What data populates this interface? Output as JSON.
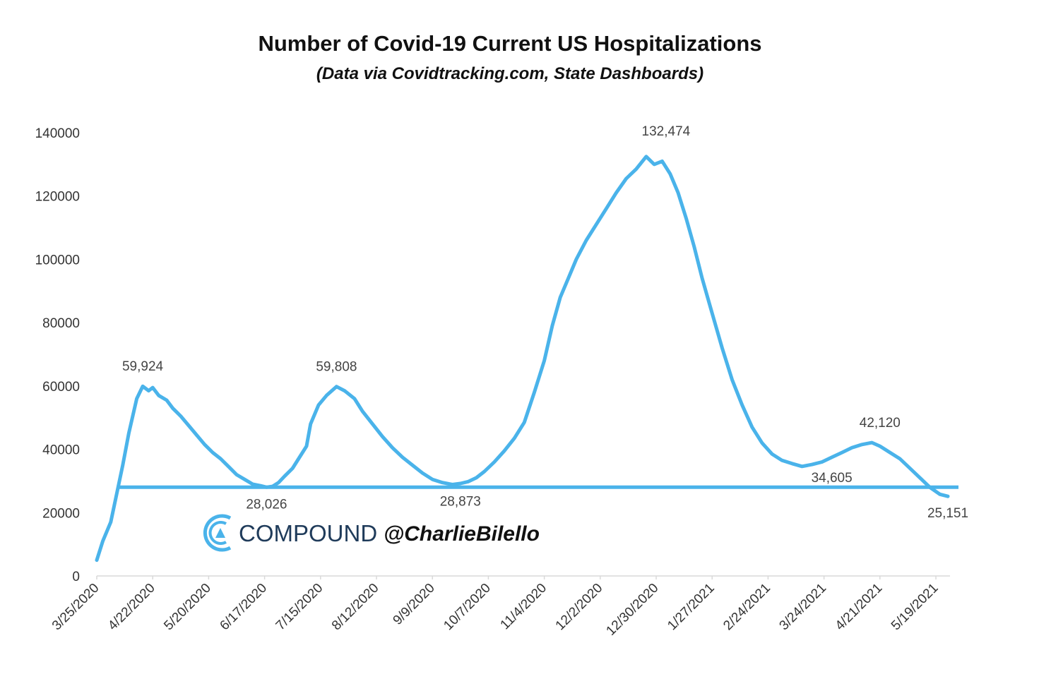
{
  "chart_data": {
    "type": "line",
    "title": "Number of Covid-19 Current US Hospitalizations",
    "subtitle": "(Data via Covidtracking.com, State Dashboards)",
    "xlabel": "",
    "ylabel": "",
    "ylim": [
      0,
      140000
    ],
    "yticks": [
      "0",
      "20000",
      "40000",
      "60000",
      "80000",
      "100000",
      "120000",
      "140000"
    ],
    "xticks": [
      "3/25/2020",
      "4/22/2020",
      "5/20/2020",
      "6/17/2020",
      "7/15/2020",
      "8/12/2020",
      "9/9/2020",
      "10/7/2020",
      "11/4/2020",
      "12/2/2020",
      "12/30/2020",
      "1/27/2021",
      "2/24/2021",
      "3/24/2021",
      "4/21/2021",
      "5/19/2021"
    ],
    "x_start": "3/25/2020",
    "x_end": "5/25/2021",
    "grid": false,
    "legend": "none",
    "series": [
      {
        "color": "#4ab3ea",
        "x": [
          "3/25/2020",
          "3/28/2020",
          "4/1/2020",
          "4/4/2020",
          "4/7/2020",
          "4/10/2020",
          "4/14/2020",
          "4/17/2020",
          "4/20/2020",
          "4/22/2020",
          "4/25/2020",
          "4/29/2020",
          "5/2/2020",
          "5/6/2020",
          "5/10/2020",
          "5/14/2020",
          "5/18/2020",
          "5/22/2020",
          "5/26/2020",
          "5/30/2020",
          "6/3/2020",
          "6/7/2020",
          "6/11/2020",
          "6/15/2020",
          "6/18/2020",
          "6/21/2020",
          "6/24/2020",
          "6/27/2020",
          "7/1/2020",
          "7/4/2020",
          "7/8/2020",
          "7/10/2020",
          "7/14/2020",
          "7/18/2020",
          "7/23/2020",
          "7/27/2020",
          "8/1/2020",
          "8/5/2020",
          "8/10/2020",
          "8/15/2020",
          "8/20/2020",
          "8/25/2020",
          "8/30/2020",
          "9/4/2020",
          "9/9/2020",
          "9/14/2020",
          "9/19/2020",
          "9/23/2020",
          "9/27/2020",
          "10/1/2020",
          "10/5/2020",
          "10/10/2020",
          "10/15/2020",
          "10/20/2020",
          "10/25/2020",
          "10/30/2020",
          "11/4/2020",
          "11/8/2020",
          "11/12/2020",
          "11/16/2020",
          "11/20/2020",
          "11/25/2020",
          "12/1/2020",
          "12/5/2020",
          "12/10/2020",
          "12/15/2020",
          "12/20/2020",
          "12/25/2020",
          "12/29/2020",
          "1/2/2021",
          "1/6/2021",
          "1/10/2021",
          "1/14/2021",
          "1/18/2021",
          "1/22/2021",
          "1/27/2021",
          "2/1/2021",
          "2/6/2021",
          "2/11/2021",
          "2/16/2021",
          "2/21/2021",
          "2/26/2021",
          "3/3/2021",
          "3/8/2021",
          "3/13/2021",
          "3/18/2021",
          "3/23/2021",
          "3/28/2021",
          "4/2/2021",
          "4/7/2021",
          "4/12/2021",
          "4/17/2021",
          "4/21/2021",
          "4/26/2021",
          "5/1/2021",
          "5/6/2021",
          "5/11/2021",
          "5/16/2021",
          "5/21/2021",
          "5/25/2021"
        ],
        "y": [
          5000,
          11000,
          17000,
          26000,
          35000,
          45000,
          56000,
          59924,
          58500,
          59500,
          57000,
          55500,
          53000,
          50500,
          47500,
          44500,
          41500,
          39000,
          37000,
          34500,
          32000,
          30500,
          29000,
          28500,
          28026,
          28300,
          29500,
          31500,
          34000,
          37000,
          41000,
          48000,
          54000,
          57000,
          59808,
          58500,
          56000,
          52000,
          48000,
          44000,
          40500,
          37500,
          35000,
          32500,
          30500,
          29500,
          28873,
          29200,
          29800,
          31000,
          33000,
          36000,
          39500,
          43500,
          48500,
          58000,
          68000,
          79000,
          88000,
          94000,
          100000,
          106000,
          112000,
          116000,
          121000,
          125500,
          128500,
          132474,
          130000,
          131000,
          127000,
          121000,
          113000,
          104000,
          94000,
          83000,
          72000,
          62000,
          54000,
          47000,
          42000,
          38500,
          36500,
          35500,
          34605,
          35200,
          36000,
          37500,
          39000,
          40500,
          41500,
          42120,
          41000,
          39000,
          37000,
          34000,
          31000,
          28000,
          25800,
          25151
        ]
      }
    ],
    "reference_line": {
      "y": 28026,
      "color": "#4ab3ea"
    },
    "annotations": [
      {
        "text": "59,924",
        "x": "4/17/2020",
        "y": 59924,
        "position": "above"
      },
      {
        "text": "28,026",
        "x": "6/18/2020",
        "y": 28026,
        "position": "below"
      },
      {
        "text": "59,808",
        "x": "7/23/2020",
        "y": 59808,
        "position": "above"
      },
      {
        "text": "28,873",
        "x": "9/23/2020",
        "y": 28873,
        "position": "below"
      },
      {
        "text": "132,474",
        "x": "12/25/2020",
        "y": 132474,
        "position": "above-right"
      },
      {
        "text": "34,605",
        "x": "3/18/2021",
        "y": 34605,
        "position": "below-right"
      },
      {
        "text": "42,120",
        "x": "4/21/2021",
        "y": 42120,
        "position": "above"
      },
      {
        "text": "25,151",
        "x": "5/25/2021",
        "y": 25151,
        "position": "below"
      }
    ]
  },
  "watermark": {
    "brand": "COMPOUND",
    "handle": "@CharlieBilello",
    "logo_icon": "compound-logo-icon",
    "brand_color": "#1f3b5a",
    "logo_color": "#4ab3ea"
  }
}
